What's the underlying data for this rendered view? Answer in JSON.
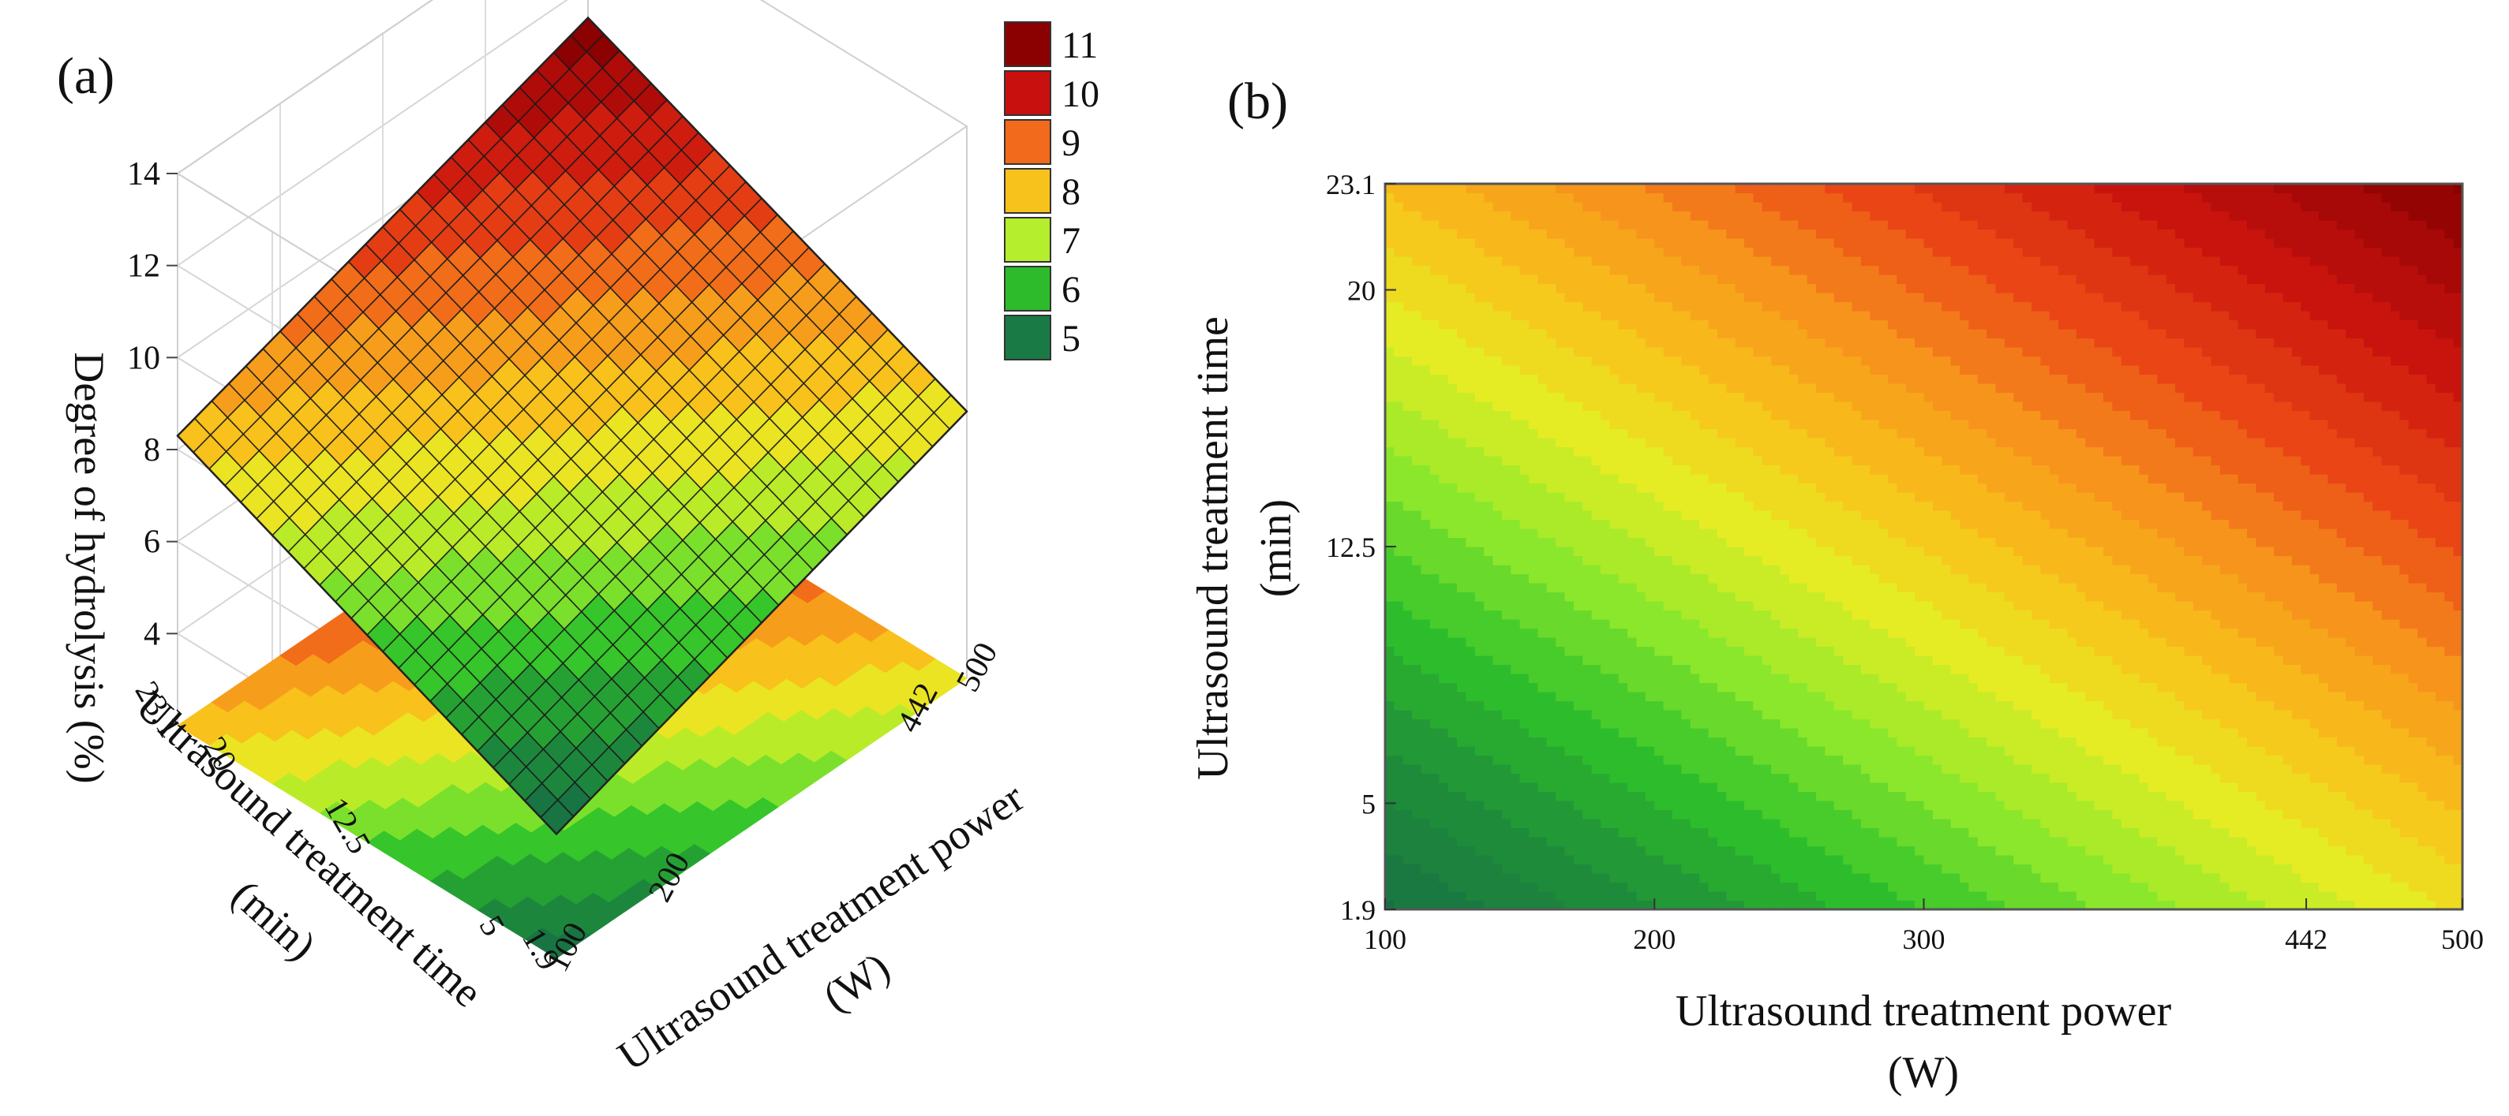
{
  "chart_data": [
    {
      "panel": "(a)",
      "type": "surface3d",
      "zlabel": "Degree of hydrolysis (%)",
      "xlabel": "Ultrasound treatment power (W)",
      "ylabel": "Ultrasound treatment time (min)",
      "x_ticks": [
        100,
        200,
        442,
        500
      ],
      "y_ticks": [
        1.9,
        5,
        12.5,
        20,
        23.1
      ],
      "z_ticks": [
        4,
        6,
        8,
        10,
        12,
        14
      ],
      "xlim": [
        100,
        500
      ],
      "ylim": [
        1.9,
        23.1
      ],
      "zlim": [
        2,
        14
      ],
      "corners": [
        {
          "x": 100,
          "y": 1.9,
          "z": 4.7
        },
        {
          "x": 500,
          "y": 1.9,
          "z": 7.8
        },
        {
          "x": 100,
          "y": 23.1,
          "z": 8.3
        },
        {
          "x": 500,
          "y": 23.1,
          "z": 11.3
        }
      ],
      "legend": [
        {
          "label": "11",
          "color": "#8b0000"
        },
        {
          "label": "10",
          "color": "#c8100e"
        },
        {
          "label": "9",
          "color": "#f26a1b"
        },
        {
          "label": "8",
          "color": "#f8c21c"
        },
        {
          "label": "7",
          "color": "#b4ee2c"
        },
        {
          "label": "6",
          "color": "#2dbb2c"
        },
        {
          "label": "5",
          "color": "#1a7a45"
        }
      ]
    },
    {
      "panel": "(b)",
      "type": "contour",
      "xlabel_line1": "Ultrasound treatment power",
      "xlabel_line2": "(W)",
      "ylabel_line1": "Ultrasound treatment time",
      "ylabel_line2": "(min)",
      "x_ticks": [
        100,
        200,
        300,
        442,
        500
      ],
      "y_ticks": [
        1.9,
        5,
        12.5,
        20,
        23.1
      ],
      "xlim": [
        100,
        500
      ],
      "ylim": [
        1.9,
        23.1
      ],
      "z_range": [
        4.7,
        11.3
      ]
    }
  ]
}
